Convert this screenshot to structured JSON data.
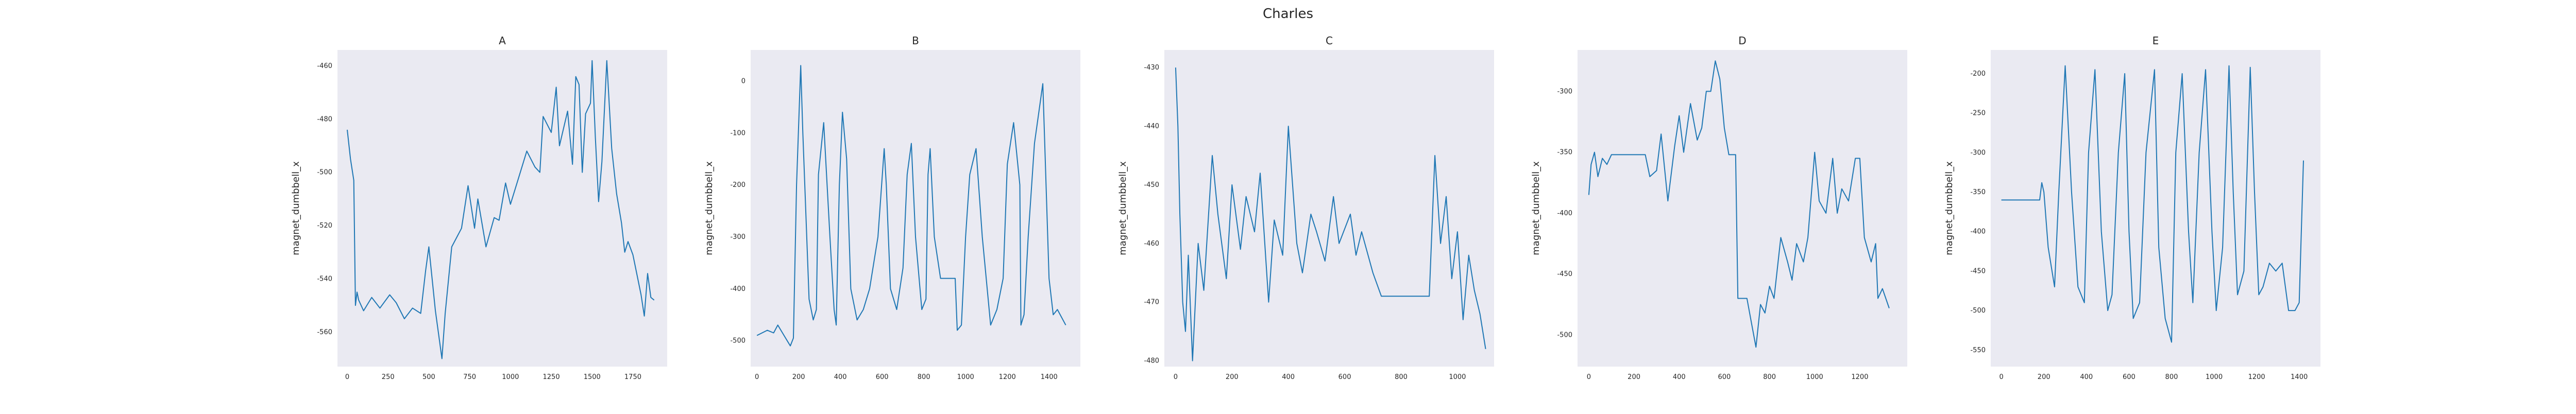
{
  "figure": {
    "title": "Charles"
  },
  "chart_data": [
    {
      "type": "line",
      "title": "A",
      "xlabel": "",
      "ylabel": "magnet_dumbbell_x",
      "xlim": [
        -60,
        1960
      ],
      "ylim": [
        -573,
        -454
      ],
      "xticks": [
        0,
        250,
        500,
        750,
        1000,
        1250,
        1500,
        1750
      ],
      "yticks": [
        -560,
        -540,
        -520,
        -500,
        -480,
        -460
      ],
      "grid": false,
      "series": [
        {
          "color": "#1f77b4",
          "x": [
            0,
            20,
            40,
            50,
            60,
            70,
            100,
            150,
            200,
            260,
            300,
            350,
            400,
            450,
            480,
            500,
            540,
            580,
            600,
            640,
            700,
            740,
            780,
            800,
            850,
            900,
            930,
            970,
            1000,
            1050,
            1100,
            1150,
            1180,
            1200,
            1250,
            1280,
            1300,
            1350,
            1380,
            1400,
            1420,
            1440,
            1460,
            1490,
            1500,
            1520,
            1540,
            1560,
            1590,
            1620,
            1650,
            1680,
            1700,
            1720,
            1750,
            1780,
            1800,
            1820,
            1840,
            1860,
            1880
          ],
          "y": [
            -484,
            -495,
            -503,
            -550,
            -545,
            -548,
            -552,
            -547,
            -551,
            -546,
            -549,
            -555,
            -551,
            -553,
            -537,
            -528,
            -552,
            -570,
            -553,
            -528,
            -521,
            -505,
            -521,
            -510,
            -528,
            -517,
            -518,
            -504,
            -512,
            -502,
            -492,
            -498,
            -500,
            -479,
            -485,
            -468,
            -490,
            -477,
            -497,
            -464,
            -467,
            -500,
            -478,
            -474,
            -458,
            -487,
            -511,
            -496,
            -458,
            -491,
            -508,
            -519,
            -530,
            -526,
            -531,
            -540,
            -546,
            -554,
            -538,
            -547,
            -548
          ]
        }
      ]
    },
    {
      "type": "line",
      "title": "B",
      "xlabel": "",
      "ylabel": "magnet_dumbbell_x",
      "xlim": [
        -30,
        1550
      ],
      "ylim": [
        -550,
        60
      ],
      "xticks": [
        0,
        200,
        400,
        600,
        800,
        1000,
        1200,
        1400
      ],
      "yticks": [
        -500,
        -400,
        -300,
        -200,
        -100,
        0
      ],
      "grid": false,
      "series": [
        {
          "color": "#1f77b4",
          "x": [
            0,
            50,
            80,
            100,
            130,
            160,
            175,
            190,
            210,
            220,
            250,
            270,
            285,
            295,
            320,
            350,
            370,
            380,
            395,
            410,
            430,
            450,
            480,
            510,
            540,
            580,
            610,
            620,
            640,
            670,
            700,
            720,
            740,
            760,
            790,
            810,
            820,
            830,
            850,
            880,
            900,
            950,
            960,
            980,
            1000,
            1020,
            1050,
            1080,
            1120,
            1150,
            1180,
            1200,
            1230,
            1260,
            1265,
            1280,
            1300,
            1330,
            1370,
            1400,
            1420,
            1440,
            1480
          ],
          "y": [
            -490,
            -480,
            -485,
            -470,
            -490,
            -510,
            -495,
            -200,
            30,
            -100,
            -420,
            -460,
            -440,
            -180,
            -80,
            -300,
            -440,
            -470,
            -200,
            -60,
            -150,
            -400,
            -460,
            -440,
            -400,
            -300,
            -130,
            -200,
            -400,
            -440,
            -360,
            -180,
            -120,
            -300,
            -440,
            -420,
            -180,
            -130,
            -300,
            -380,
            -380,
            -380,
            -480,
            -470,
            -300,
            -180,
            -130,
            -300,
            -470,
            -440,
            -380,
            -160,
            -80,
            -200,
            -470,
            -450,
            -300,
            -120,
            -5,
            -380,
            -450,
            -440,
            -470
          ]
        }
      ]
    },
    {
      "type": "line",
      "title": "C",
      "xlabel": "",
      "ylabel": "magnet_dumbbell_x",
      "xlim": [
        -40,
        1130
      ],
      "ylim": [
        -481,
        -427
      ],
      "xticks": [
        0,
        200,
        400,
        600,
        800,
        1000
      ],
      "yticks": [
        -480,
        -470,
        -460,
        -450,
        -440,
        -430
      ],
      "grid": false,
      "series": [
        {
          "color": "#1f77b4",
          "x": [
            0,
            8,
            15,
            25,
            35,
            45,
            60,
            80,
            100,
            130,
            150,
            180,
            200,
            230,
            250,
            280,
            300,
            330,
            350,
            380,
            400,
            430,
            450,
            480,
            500,
            530,
            560,
            580,
            620,
            640,
            660,
            700,
            730,
            760,
            800,
            850,
            900,
            920,
            940,
            960,
            980,
            1000,
            1020,
            1040,
            1060,
            1080,
            1100
          ],
          "y": [
            -430,
            -440,
            -455,
            -470,
            -475,
            -462,
            -480,
            -460,
            -468,
            -445,
            -455,
            -466,
            -450,
            -461,
            -452,
            -458,
            -448,
            -470,
            -456,
            -462,
            -440,
            -460,
            -465,
            -455,
            -458,
            -463,
            -452,
            -460,
            -455,
            -462,
            -458,
            -465,
            -469,
            -469,
            -469,
            -469,
            -469,
            -445,
            -460,
            -452,
            -466,
            -458,
            -473,
            -462,
            -468,
            -472,
            -478
          ]
        }
      ]
    },
    {
      "type": "line",
      "title": "D",
      "xlabel": "",
      "ylabel": "magnet_dumbbell_x",
      "xlim": [
        -50,
        1410
      ],
      "ylim": [
        -526,
        -266
      ],
      "xticks": [
        0,
        200,
        400,
        600,
        800,
        1000,
        1200
      ],
      "yticks": [
        -500,
        -450,
        -400,
        -350,
        -300
      ],
      "grid": false,
      "series": [
        {
          "color": "#1f77b4",
          "x": [
            0,
            10,
            25,
            40,
            60,
            80,
            100,
            150,
            200,
            250,
            270,
            300,
            320,
            350,
            380,
            400,
            420,
            450,
            480,
            500,
            520,
            540,
            560,
            580,
            600,
            620,
            650,
            660,
            700,
            720,
            740,
            760,
            780,
            800,
            820,
            850,
            880,
            900,
            920,
            950,
            970,
            1000,
            1020,
            1050,
            1080,
            1100,
            1120,
            1150,
            1180,
            1200,
            1220,
            1250,
            1270,
            1280,
            1300,
            1330
          ],
          "y": [
            -385,
            -360,
            -350,
            -370,
            -355,
            -360,
            -352,
            -352,
            -352,
            -352,
            -370,
            -365,
            -335,
            -390,
            -345,
            -320,
            -350,
            -310,
            -340,
            -330,
            -300,
            -300,
            -275,
            -290,
            -330,
            -352,
            -352,
            -470,
            -470,
            -490,
            -510,
            -475,
            -482,
            -460,
            -470,
            -420,
            -440,
            -455,
            -425,
            -440,
            -420,
            -350,
            -390,
            -400,
            -355,
            -400,
            -380,
            -390,
            -355,
            -355,
            -420,
            -440,
            -425,
            -470,
            -462,
            -478
          ]
        }
      ]
    },
    {
      "type": "line",
      "title": "E",
      "xlabel": "",
      "ylabel": "magnet_dumbbell_x",
      "xlim": [
        -50,
        1500
      ],
      "ylim": [
        -571,
        -170
      ],
      "xticks": [
        0,
        200,
        400,
        600,
        800,
        1000,
        1200,
        1400
      ],
      "yticks": [
        -550,
        -500,
        -450,
        -400,
        -350,
        -300,
        -250,
        -200
      ],
      "grid": false,
      "series": [
        {
          "color": "#1f77b4",
          "x": [
            0,
            100,
            180,
            190,
            200,
            220,
            250,
            270,
            300,
            330,
            360,
            390,
            410,
            440,
            470,
            500,
            520,
            550,
            580,
            600,
            620,
            650,
            680,
            720,
            740,
            770,
            800,
            820,
            850,
            880,
            900,
            930,
            960,
            990,
            1010,
            1040,
            1070,
            1090,
            1110,
            1140,
            1170,
            1190,
            1210,
            1230,
            1260,
            1290,
            1320,
            1350,
            1380,
            1400,
            1420
          ],
          "y": [
            -360,
            -360,
            -360,
            -338,
            -350,
            -420,
            -470,
            -350,
            -190,
            -350,
            -470,
            -490,
            -300,
            -195,
            -400,
            -500,
            -480,
            -300,
            -200,
            -400,
            -510,
            -490,
            -300,
            -195,
            -420,
            -510,
            -540,
            -300,
            -200,
            -400,
            -490,
            -300,
            -195,
            -400,
            -500,
            -420,
            -190,
            -350,
            -480,
            -450,
            -192,
            -350,
            -480,
            -470,
            -440,
            -450,
            -440,
            -500,
            -500,
            -490,
            -310
          ]
        }
      ]
    }
  ]
}
